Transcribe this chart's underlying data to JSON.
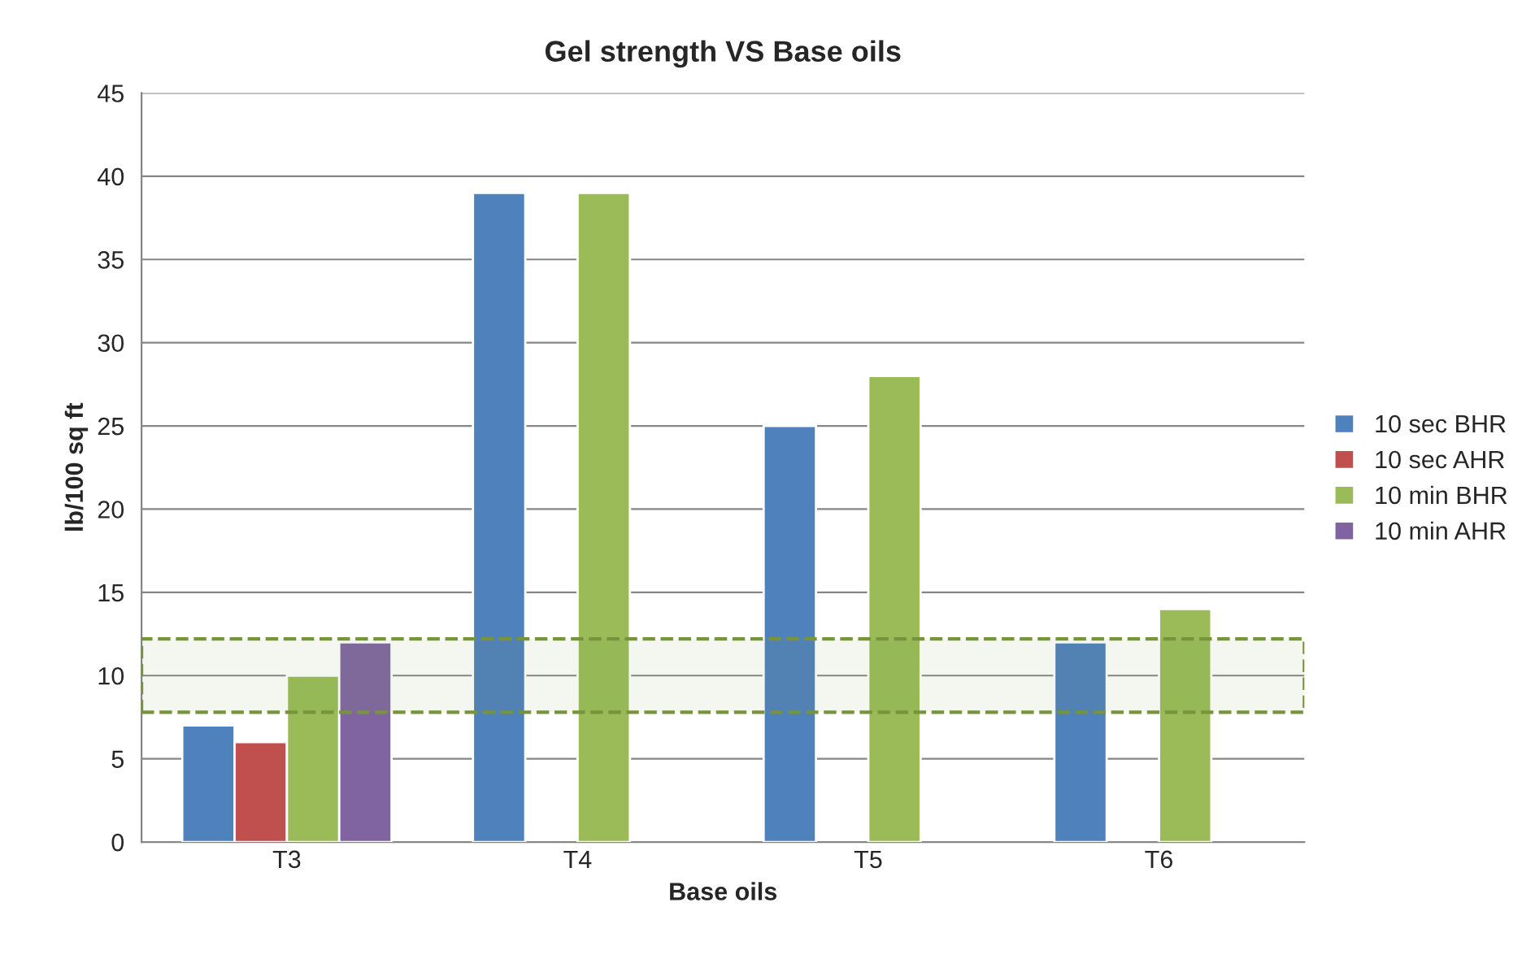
{
  "chart_data": {
    "type": "bar",
    "title": "Gel strength VS Base oils",
    "xlabel": "Base oils",
    "ylabel": "lb/100 sq ft",
    "categories": [
      "T3",
      "T4",
      "T5",
      "T6"
    ],
    "series": [
      {
        "name": "10 sec BHR",
        "color": "#4f81bd",
        "values": [
          7,
          39,
          25,
          12
        ]
      },
      {
        "name": "10 sec AHR",
        "color": "#c0504d",
        "values": [
          6,
          null,
          null,
          null
        ]
      },
      {
        "name": "10 min BHR",
        "color": "#9bbb59",
        "values": [
          10,
          39,
          28,
          14
        ]
      },
      {
        "name": "10 min AHR",
        "color": "#8064a2",
        "values": [
          12,
          null,
          null,
          null
        ]
      }
    ],
    "ylim": [
      0,
      45
    ],
    "yticks": [
      0,
      5,
      10,
      15,
      20,
      25,
      30,
      35,
      40,
      45
    ],
    "bands": [
      {
        "axis": "y",
        "from": 7.8,
        "to": 12.2,
        "color": "#77933c"
      }
    ],
    "grid": "y",
    "legend": "right"
  }
}
